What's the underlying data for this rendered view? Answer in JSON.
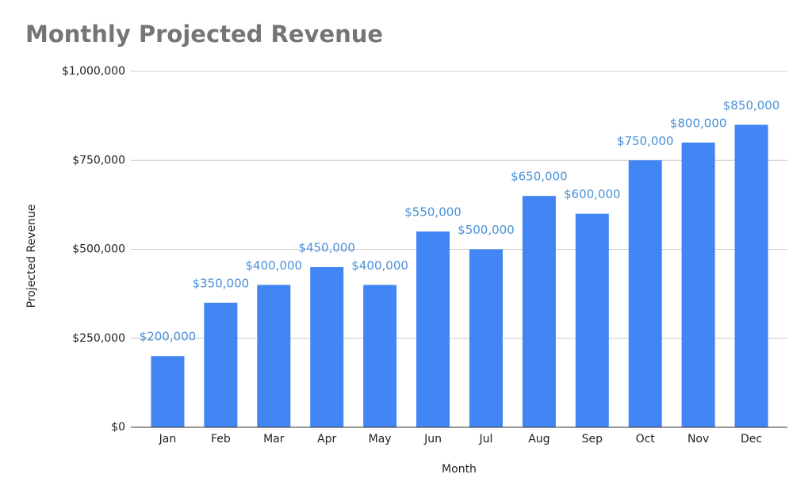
{
  "chart_data": {
    "type": "bar",
    "title": "Monthly Projected Revenue",
    "x_label": "Month",
    "y_label": "Projected Revenue",
    "categories": [
      "Jan",
      "Feb",
      "Mar",
      "Apr",
      "May",
      "Jun",
      "Jul",
      "Aug",
      "Sep",
      "Oct",
      "Nov",
      "Dec"
    ],
    "values": [
      200000,
      350000,
      400000,
      450000,
      400000,
      550000,
      500000,
      650000,
      600000,
      750000,
      800000,
      850000
    ],
    "value_labels": [
      "$200,000",
      "$350,000",
      "$400,000",
      "$450,000",
      "$400,000",
      "$550,000",
      "$500,000",
      "$650,000",
      "$600,000",
      "$750,000",
      "$800,000",
      "$850,000"
    ],
    "color": "#4285f4",
    "ylim": [
      0,
      1000000
    ],
    "yticks": [
      {
        "value": 0,
        "label": "$0"
      },
      {
        "value": 250000,
        "label": "$250,000"
      },
      {
        "value": 500000,
        "label": "$500,000"
      },
      {
        "value": 750000,
        "label": "$750,000"
      },
      {
        "value": 1000000,
        "label": "$1,000,000"
      }
    ],
    "grid": true
  }
}
